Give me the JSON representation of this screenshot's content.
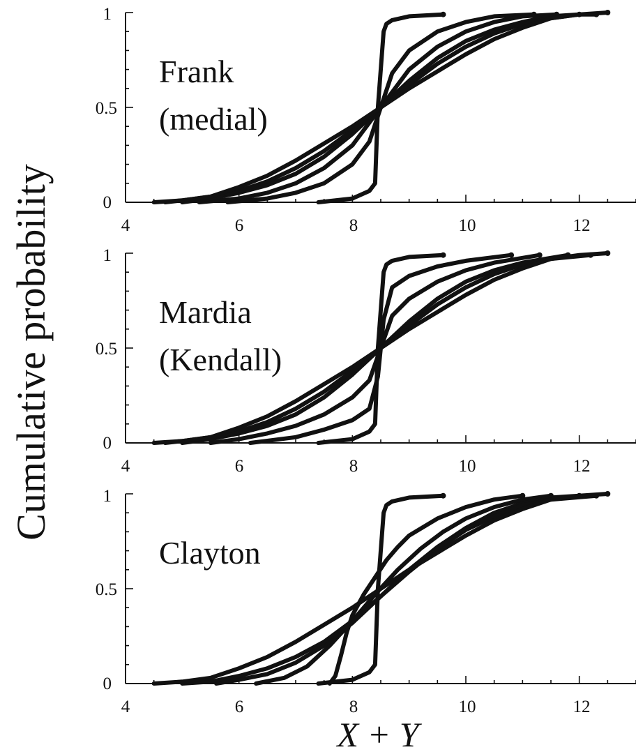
{
  "figure": {
    "ylabel": "Cumulative probability",
    "xlabel": "X + Y"
  },
  "chart_data": [
    {
      "type": "line",
      "label_lines": [
        "Frank",
        "(medial)"
      ],
      "xlim": [
        4,
        13
      ],
      "ylim": [
        0,
        1
      ],
      "xticks": [
        4,
        6,
        8,
        10,
        12
      ],
      "xtick_labels": [
        "4",
        "6",
        "8",
        "10",
        "12"
      ],
      "yticks": [
        0,
        0.5,
        1
      ],
      "ytick_labels": [
        "0",
        "0.5",
        "1"
      ],
      "grid": false,
      "series": [
        {
          "x": [
            7.4,
            8.0,
            8.3,
            8.4,
            8.45,
            8.55,
            8.6,
            8.7,
            9.0,
            9.6
          ],
          "y": [
            0,
            0.02,
            0.06,
            0.1,
            0.5,
            0.9,
            0.94,
            0.96,
            0.98,
            0.99
          ]
        },
        {
          "x": [
            5.8,
            6.5,
            7.0,
            7.5,
            8.0,
            8.3,
            8.5,
            8.7,
            9.0,
            9.5,
            10.0,
            10.5,
            11.2
          ],
          "y": [
            0,
            0.02,
            0.05,
            0.1,
            0.2,
            0.32,
            0.5,
            0.68,
            0.8,
            0.9,
            0.95,
            0.98,
            0.99
          ]
        },
        {
          "x": [
            5.3,
            6.0,
            6.5,
            7.0,
            7.5,
            8.0,
            8.5,
            9.0,
            9.5,
            10.0,
            10.5,
            11.0,
            11.6
          ],
          "y": [
            0,
            0.02,
            0.05,
            0.1,
            0.18,
            0.3,
            0.5,
            0.7,
            0.82,
            0.9,
            0.95,
            0.98,
            0.99
          ]
        },
        {
          "x": [
            5.0,
            5.5,
            6.0,
            6.5,
            7.0,
            7.5,
            8.0,
            8.5,
            9.0,
            9.5,
            10.0,
            10.5,
            11.0,
            11.5,
            12.0
          ],
          "y": [
            0,
            0.02,
            0.05,
            0.09,
            0.15,
            0.24,
            0.36,
            0.5,
            0.64,
            0.76,
            0.85,
            0.91,
            0.95,
            0.98,
            0.99
          ]
        },
        {
          "x": [
            4.7,
            5.0,
            5.5,
            6.0,
            6.5,
            7.0,
            7.5,
            8.0,
            8.5,
            9.0,
            9.5,
            10.0,
            10.5,
            11.0,
            11.5,
            12.0,
            12.3
          ],
          "y": [
            0,
            0.01,
            0.03,
            0.06,
            0.11,
            0.18,
            0.27,
            0.38,
            0.5,
            0.62,
            0.73,
            0.82,
            0.89,
            0.94,
            0.97,
            0.99,
            0.99
          ]
        },
        {
          "x": [
            4.5,
            5.0,
            5.5,
            6.0,
            6.5,
            7.0,
            7.5,
            8.0,
            8.5,
            9.0,
            9.5,
            10.0,
            10.5,
            11.0,
            11.5,
            12.0,
            12.5
          ],
          "y": [
            0,
            0.01,
            0.03,
            0.08,
            0.14,
            0.22,
            0.31,
            0.4,
            0.5,
            0.6,
            0.69,
            0.78,
            0.86,
            0.92,
            0.97,
            0.99,
            1.0
          ]
        }
      ]
    },
    {
      "type": "line",
      "label_lines": [
        "Mardia",
        "(Kendall)"
      ],
      "xlim": [
        4,
        13
      ],
      "ylim": [
        0,
        1
      ],
      "xticks": [
        4,
        6,
        8,
        10,
        12
      ],
      "xtick_labels": [
        "4",
        "6",
        "8",
        "10",
        "12"
      ],
      "yticks": [
        0,
        0.5,
        1
      ],
      "ytick_labels": [
        "0",
        "0.5",
        "1"
      ],
      "grid": false,
      "series": [
        {
          "x": [
            7.4,
            8.0,
            8.3,
            8.4,
            8.45,
            8.55,
            8.6,
            8.7,
            9.0,
            9.6
          ],
          "y": [
            0,
            0.02,
            0.06,
            0.1,
            0.5,
            0.9,
            0.94,
            0.96,
            0.98,
            0.99
          ]
        },
        {
          "x": [
            6.2,
            7.0,
            7.5,
            8.0,
            8.3,
            8.45,
            8.55,
            8.7,
            9.0,
            9.5,
            10.0,
            10.8
          ],
          "y": [
            0,
            0.03,
            0.07,
            0.12,
            0.18,
            0.35,
            0.65,
            0.82,
            0.88,
            0.93,
            0.96,
            0.99
          ]
        },
        {
          "x": [
            5.5,
            6.0,
            6.5,
            7.0,
            7.5,
            8.0,
            8.3,
            8.5,
            8.7,
            9.0,
            9.5,
            10.0,
            10.5,
            11.3
          ],
          "y": [
            0,
            0.02,
            0.05,
            0.09,
            0.15,
            0.24,
            0.33,
            0.5,
            0.67,
            0.76,
            0.85,
            0.91,
            0.95,
            0.99
          ]
        },
        {
          "x": [
            5.0,
            5.5,
            6.0,
            6.5,
            7.0,
            7.5,
            8.0,
            8.5,
            9.0,
            9.5,
            10.0,
            10.5,
            11.0,
            11.8
          ],
          "y": [
            0,
            0.02,
            0.05,
            0.09,
            0.15,
            0.24,
            0.36,
            0.5,
            0.64,
            0.76,
            0.85,
            0.91,
            0.95,
            0.99
          ]
        },
        {
          "x": [
            4.7,
            5.0,
            5.5,
            6.0,
            6.5,
            7.0,
            7.5,
            8.0,
            8.5,
            9.0,
            9.5,
            10.0,
            10.5,
            11.0,
            11.5,
            12.2
          ],
          "y": [
            0,
            0.01,
            0.03,
            0.06,
            0.11,
            0.18,
            0.27,
            0.38,
            0.5,
            0.62,
            0.73,
            0.82,
            0.89,
            0.94,
            0.97,
            0.99
          ]
        },
        {
          "x": [
            4.5,
            5.0,
            5.5,
            6.0,
            6.5,
            7.0,
            7.5,
            8.0,
            8.5,
            9.0,
            9.5,
            10.0,
            10.5,
            11.0,
            11.5,
            12.0,
            12.5
          ],
          "y": [
            0,
            0.01,
            0.03,
            0.08,
            0.14,
            0.22,
            0.31,
            0.4,
            0.5,
            0.6,
            0.69,
            0.78,
            0.86,
            0.92,
            0.97,
            0.99,
            1.0
          ]
        }
      ]
    },
    {
      "type": "line",
      "label_lines": [
        "Clayton"
      ],
      "xlim": [
        4,
        13
      ],
      "ylim": [
        0,
        1
      ],
      "xticks": [
        4,
        6,
        8,
        10,
        12
      ],
      "xtick_labels": [
        "4",
        "6",
        "8",
        "10",
        "12"
      ],
      "yticks": [
        0,
        0.5,
        1
      ],
      "ytick_labels": [
        "0",
        "0.5",
        "1"
      ],
      "grid": false,
      "series": [
        {
          "x": [
            7.4,
            8.0,
            8.3,
            8.4,
            8.45,
            8.55,
            8.6,
            8.7,
            9.0,
            9.6
          ],
          "y": [
            0,
            0.02,
            0.06,
            0.1,
            0.5,
            0.9,
            0.94,
            0.96,
            0.98,
            0.99
          ]
        },
        {
          "x": [
            7.6,
            7.7,
            7.8,
            7.9,
            8.0,
            8.2,
            8.4,
            8.6,
            8.8,
            9.0,
            9.5,
            10.0,
            10.5,
            11.0
          ],
          "y": [
            0,
            0.04,
            0.15,
            0.27,
            0.36,
            0.47,
            0.56,
            0.65,
            0.72,
            0.78,
            0.87,
            0.93,
            0.97,
            0.99
          ]
        },
        {
          "x": [
            6.3,
            6.8,
            7.2,
            7.6,
            8.0,
            8.4,
            8.8,
            9.2,
            9.6,
            10.0,
            10.5,
            11.0,
            11.5
          ],
          "y": [
            0,
            0.03,
            0.09,
            0.2,
            0.33,
            0.47,
            0.6,
            0.71,
            0.8,
            0.87,
            0.93,
            0.97,
            0.99
          ]
        },
        {
          "x": [
            5.6,
            6.0,
            6.5,
            7.0,
            7.5,
            8.0,
            8.5,
            9.0,
            9.5,
            10.0,
            10.5,
            11.0,
            11.5,
            12.0
          ],
          "y": [
            0,
            0.02,
            0.05,
            0.11,
            0.2,
            0.32,
            0.46,
            0.6,
            0.72,
            0.82,
            0.9,
            0.95,
            0.98,
            0.99
          ]
        },
        {
          "x": [
            5.0,
            5.5,
            6.0,
            6.5,
            7.0,
            7.5,
            8.0,
            8.5,
            9.0,
            9.5,
            10.0,
            10.5,
            11.0,
            11.5,
            12.3
          ],
          "y": [
            0,
            0.01,
            0.04,
            0.08,
            0.14,
            0.22,
            0.33,
            0.46,
            0.59,
            0.71,
            0.81,
            0.88,
            0.94,
            0.97,
            0.99
          ]
        },
        {
          "x": [
            4.5,
            5.0,
            5.5,
            6.0,
            6.5,
            7.0,
            7.5,
            8.0,
            8.5,
            9.0,
            9.5,
            10.0,
            10.5,
            11.0,
            11.5,
            12.0,
            12.5
          ],
          "y": [
            0,
            0.01,
            0.03,
            0.08,
            0.14,
            0.22,
            0.31,
            0.4,
            0.5,
            0.6,
            0.69,
            0.78,
            0.86,
            0.92,
            0.97,
            0.99,
            1.0
          ]
        }
      ]
    }
  ]
}
